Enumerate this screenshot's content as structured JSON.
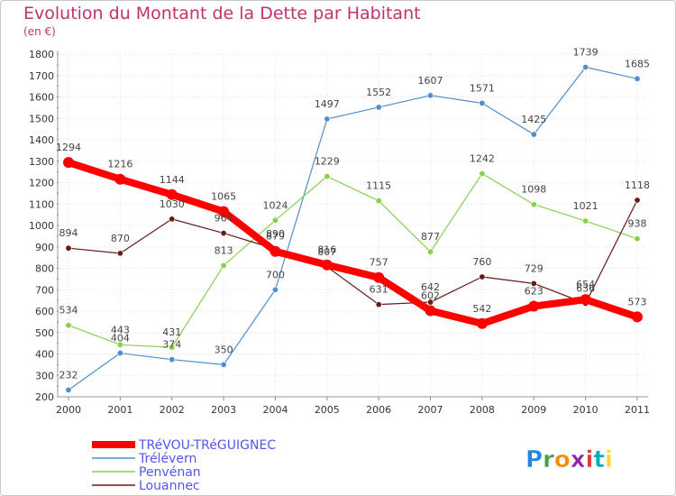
{
  "chart_data": {
    "type": "line",
    "title": "Evolution du Montant de la Dette par Habitant",
    "subtitle": "(en €)",
    "x": [
      "2000",
      "2001",
      "2002",
      "2003",
      "2004",
      "2005",
      "2006",
      "2007",
      "2008",
      "2009",
      "2010",
      "2011"
    ],
    "ylim": [
      200,
      1800
    ],
    "yticks": [
      200,
      300,
      400,
      500,
      600,
      700,
      800,
      900,
      1000,
      1100,
      1200,
      1300,
      1400,
      1500,
      1600,
      1700,
      1800
    ],
    "grid": true,
    "legend_position": "bottom-left",
    "series": [
      {
        "name": "TRéVOU-TRéGUIGNEC",
        "color": "#ff0000",
        "values": [
          1294,
          1216,
          1144,
          1065,
          879,
          816,
          757,
          602,
          542,
          623,
          654,
          573
        ]
      },
      {
        "name": "Trélévern",
        "color": "#4f8fce",
        "values": [
          232,
          404,
          374,
          350,
          700,
          1497,
          1552,
          1607,
          1571,
          1425,
          1739,
          1685
        ]
      },
      {
        "name": "Penvénan",
        "color": "#88d04b",
        "values": [
          534,
          443,
          431,
          813,
          1024,
          1229,
          1115,
          877,
          1242,
          1098,
          1021,
          938
        ]
      },
      {
        "name": "Louannec",
        "color": "#6b1a1a",
        "values": [
          894,
          870,
          1030,
          964,
          890,
          807,
          631,
          642,
          760,
          729,
          636,
          1118
        ]
      }
    ]
  },
  "logo": {
    "text": "Proxiti",
    "colors": [
      "#1e88e5",
      "#43a047",
      "#fb8c00",
      "#8e24aa",
      "#e53935",
      "#00acc1",
      "#fdd835"
    ]
  }
}
